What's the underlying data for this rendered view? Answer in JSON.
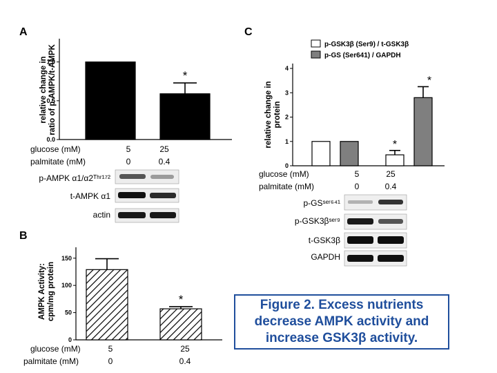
{
  "panels": {
    "a": "A",
    "b": "B",
    "c": "C"
  },
  "caption": "Figure 2.  Excess nutrients decrease AMPK activity and increase GSK3β activity.",
  "conditions": {
    "glucose_label": "glucose (mM)",
    "palmitate_label": "palmitate (mM)",
    "glucose": [
      "5",
      "25"
    ],
    "palmitate": [
      "0",
      "0.4"
    ]
  },
  "blots": {
    "left": [
      "p-AMPK α1/α2ᵀʰʳ¹⁷²",
      "t-AMPK α1",
      "actin"
    ],
    "right": [
      "p-GSˢᵉʳ⁶⁴¹",
      "p-GSK3βˢᵉʳ⁹",
      "t-GSK3β",
      "GAPDH"
    ]
  },
  "colors": {
    "caption": "#1f4e9c",
    "gray_bar": "#7f7f7f",
    "black_bar": "#000000",
    "white_bar": "#ffffff"
  },
  "chart_data": [
    {
      "id": "A",
      "type": "bar",
      "categories": [
        "5 mM glucose / 0 mM palmitate",
        "25 mM glucose / 0.4 mM palmitate"
      ],
      "values": [
        1.0,
        0.59
      ],
      "errors": [
        0,
        0.14
      ],
      "significance": [
        "",
        "*"
      ],
      "ylabel": "relative change in ratio of p-AMPK/t-AMPK",
      "ylim": [
        0,
        1.3
      ],
      "yticks": [
        "0.0",
        "0.5",
        "1.0"
      ],
      "ytick_values": [
        0,
        0.5,
        1.0
      ],
      "fill": "solid black"
    },
    {
      "id": "B",
      "type": "bar",
      "categories": [
        "5 mM glucose / 0 mM palmitate",
        "25 mM glucose / 0.4 mM palmitate"
      ],
      "values": [
        129,
        57
      ],
      "errors": [
        20,
        4
      ],
      "significance": [
        "",
        "*"
      ],
      "ylabel": "AMPK Activity: cpm/mg protein",
      "ylim": [
        0,
        170
      ],
      "yticks": [
        "0",
        "50",
        "100",
        "150"
      ],
      "ytick_values": [
        0,
        50,
        100,
        150
      ],
      "fill": "diagonal hatch"
    },
    {
      "id": "C",
      "type": "bar",
      "categories": [
        "5 mM glucose / 0 mM palmitate",
        "25 mM glucose / 0.4 mM palmitate"
      ],
      "series": [
        {
          "name": "p-GSK3β (Ser9) / t-GSK3β",
          "values": [
            1.0,
            0.45
          ],
          "errors": [
            0,
            0.18
          ],
          "significance": [
            "",
            "*"
          ]
        },
        {
          "name": "p-GS (Ser641) / GAPDH",
          "values": [
            1.0,
            2.8
          ],
          "errors": [
            0,
            0.45
          ],
          "significance": [
            "",
            "*"
          ]
        }
      ],
      "ylabel": "relative change in protein",
      "ylim": [
        0,
        4.2
      ],
      "yticks": [
        "0",
        "1",
        "2",
        "3",
        "4"
      ],
      "ytick_values": [
        0,
        1,
        2,
        3,
        4
      ],
      "legend": "top"
    }
  ]
}
